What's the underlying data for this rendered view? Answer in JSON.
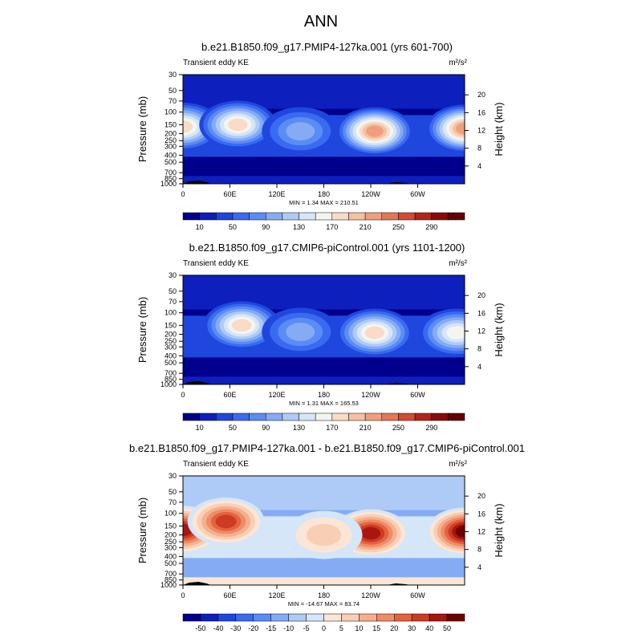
{
  "main_title": "ANN",
  "chart_data": [
    {
      "type": "heatmap",
      "title": "b.e21.B1850.f09_g17.PMIP4-127ka.001 (yrs 601-700)",
      "left_label": "Transient eddy KE",
      "units": "m²/s²",
      "ylabel": "Pressure (mb)",
      "y2label": "Height (km)",
      "x_ticks": [
        "0",
        "60E",
        "120E",
        "180",
        "120W",
        "60W"
      ],
      "x_tick_lon": [
        0,
        60,
        120,
        180,
        240,
        300
      ],
      "xlim": [
        0,
        360
      ],
      "y_ticks": [
        "30",
        "50",
        "70",
        "100",
        "150",
        "200",
        "250",
        "300",
        "400",
        "500",
        "700",
        "850",
        "1000"
      ],
      "y_tick_p": [
        30,
        50,
        70,
        100,
        150,
        200,
        250,
        300,
        400,
        500,
        700,
        850,
        1000
      ],
      "ylim": [
        30,
        1000
      ],
      "y_scale": "log",
      "height_ticks": [
        "20",
        "16",
        "12",
        "8",
        "4"
      ],
      "height_tick_km": [
        20,
        16,
        12,
        8,
        4
      ],
      "stats": "MIN =   1.34   MAX = 210.51",
      "colorbar": {
        "labels": [
          "10",
          "50",
          "90",
          "130",
          "170",
          "210",
          "250",
          "290"
        ],
        "colors": [
          "#00008c",
          "#0d1fbd",
          "#1f47de",
          "#3a6af0",
          "#5a8cf5",
          "#85abf5",
          "#aecbf7",
          "#d4e6f7",
          "#f5f5f0",
          "#f8dcc8",
          "#f5c0a3",
          "#ef9f7d",
          "#e57656",
          "#d44a33",
          "#b52219",
          "#8a0a0a",
          "#640000"
        ]
      },
      "fields": {
        "background_level": 2,
        "blobs": [
          {
            "lon": 0,
            "p": 160,
            "level": 9
          },
          {
            "lon": 360,
            "p": 170,
            "level": 11
          },
          {
            "lon": 70,
            "p": 150,
            "level": 9
          },
          {
            "lon": 245,
            "p": 185,
            "level": 11
          },
          {
            "lon": 150,
            "p": 185,
            "level": 5
          }
        ]
      }
    },
    {
      "type": "heatmap",
      "title": "b.e21.B1850.f09_g17.CMIP6-piControl.001 (yrs 1101-1200)",
      "left_label": "Transient eddy KE",
      "units": "m²/s²",
      "ylabel": "Pressure (mb)",
      "y2label": "Height (km)",
      "x_ticks": [
        "0",
        "60E",
        "120E",
        "180",
        "120W",
        "60W"
      ],
      "x_tick_lon": [
        0,
        60,
        120,
        180,
        240,
        300
      ],
      "xlim": [
        0,
        360
      ],
      "y_ticks": [
        "30",
        "50",
        "70",
        "100",
        "150",
        "200",
        "250",
        "300",
        "400",
        "500",
        "700",
        "850",
        "1000"
      ],
      "y_tick_p": [
        30,
        50,
        70,
        100,
        150,
        200,
        250,
        300,
        400,
        500,
        700,
        850,
        1000
      ],
      "ylim": [
        30,
        1000
      ],
      "y_scale": "log",
      "height_ticks": [
        "20",
        "16",
        "12",
        "8",
        "4"
      ],
      "height_tick_km": [
        20,
        16,
        12,
        8,
        4
      ],
      "stats": "MIN =   1.31   MAX = 165.53",
      "colorbar": {
        "labels": [
          "10",
          "50",
          "90",
          "130",
          "170",
          "210",
          "250",
          "290"
        ],
        "colors": [
          "#00008c",
          "#0d1fbd",
          "#1f47de",
          "#3a6af0",
          "#5a8cf5",
          "#85abf5",
          "#aecbf7",
          "#d4e6f7",
          "#f5f5f0",
          "#f8dcc8",
          "#f5c0a3",
          "#ef9f7d",
          "#e57656",
          "#d44a33",
          "#b52219",
          "#8a0a0a",
          "#640000"
        ]
      },
      "fields": {
        "background_level": 2,
        "blobs": [
          {
            "lon": 75,
            "p": 150,
            "level": 9
          },
          {
            "lon": 245,
            "p": 190,
            "level": 9
          },
          {
            "lon": 350,
            "p": 190,
            "level": 8
          },
          {
            "lon": 150,
            "p": 185,
            "level": 5
          }
        ]
      }
    },
    {
      "type": "heatmap",
      "title": "b.e21.B1850.f09_g17.PMIP4-127ka.001 - b.e21.B1850.f09_g17.CMIP6-piControl.001",
      "left_label": "Transient eddy KE",
      "units": "m²/s²",
      "ylabel": "Pressure (mb)",
      "y2label": "Height (km)",
      "x_ticks": [
        "0",
        "60E",
        "120E",
        "180",
        "120W",
        "60W"
      ],
      "x_tick_lon": [
        0,
        60,
        120,
        180,
        240,
        300
      ],
      "xlim": [
        0,
        360
      ],
      "y_ticks": [
        "30",
        "50",
        "70",
        "100",
        "150",
        "200",
        "250",
        "300",
        "400",
        "500",
        "700",
        "850",
        "1000"
      ],
      "y_tick_p": [
        30,
        50,
        70,
        100,
        150,
        200,
        250,
        300,
        400,
        500,
        700,
        850,
        1000
      ],
      "ylim": [
        30,
        1000
      ],
      "y_scale": "log",
      "height_ticks": [
        "20",
        "16",
        "12",
        "8",
        "4"
      ],
      "height_tick_km": [
        20,
        16,
        12,
        8,
        4
      ],
      "stats": "MIN = -14.67   MAX =  83.74",
      "colorbar": {
        "labels": [
          "-50",
          "-40",
          "-30",
          "-20",
          "-15",
          "-10",
          "-5",
          "0",
          "5",
          "10",
          "15",
          "20",
          "30",
          "40",
          "50"
        ],
        "colors": [
          "#00008c",
          "#0d1fbd",
          "#1f47de",
          "#3a6af0",
          "#5a8cf5",
          "#85abf5",
          "#aecbf7",
          "#d4e6f7",
          "#fbe6d5",
          "#f8cfb5",
          "#f5b08e",
          "#ee8c68",
          "#e3633f",
          "#cf3a22",
          "#a8170f",
          "#6e0000"
        ]
      },
      "fields": {
        "background_level": 7,
        "blobs": [
          {
            "lon": 0,
            "p": 170,
            "level": 14
          },
          {
            "lon": 360,
            "p": 180,
            "level": 15
          },
          {
            "lon": 55,
            "p": 130,
            "level": 13
          },
          {
            "lon": 240,
            "p": 190,
            "level": 14
          },
          {
            "lon": 180,
            "p": 200,
            "level": 9
          },
          {
            "lon": 100,
            "p": 160,
            "level": 5
          }
        ]
      }
    }
  ]
}
